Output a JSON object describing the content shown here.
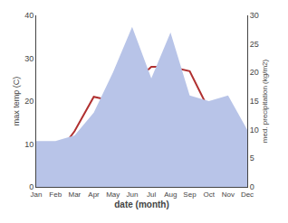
{
  "chart_data": {
    "type": "line",
    "xlabel": "date (month)",
    "ylabel": "max temp (C)",
    "y2label": "med. precipitation (kg/m2)",
    "categories": [
      "Jan",
      "Feb",
      "Mar",
      "Apr",
      "May",
      "Jun",
      "Jul",
      "Aug",
      "Sep",
      "Oct",
      "Nov",
      "Dec"
    ],
    "series": [
      {
        "type": "area",
        "axis": "y2",
        "color": "#b8c4e8",
        "values": [
          8,
          8,
          9,
          13,
          20,
          28,
          19,
          27,
          16,
          15,
          16,
          10
        ]
      },
      {
        "type": "line",
        "color": "#b03030",
        "values": [
          3,
          7,
          13,
          21,
          20,
          24,
          28,
          28,
          27,
          18,
          11,
          7
        ]
      }
    ],
    "ylim": [
      0,
      40
    ],
    "yticks": [
      0,
      10,
      20,
      30,
      40
    ],
    "y2lim": [
      0,
      30
    ],
    "y2ticks": [
      0,
      5,
      10,
      15,
      20,
      25,
      30
    ],
    "grid": false
  }
}
